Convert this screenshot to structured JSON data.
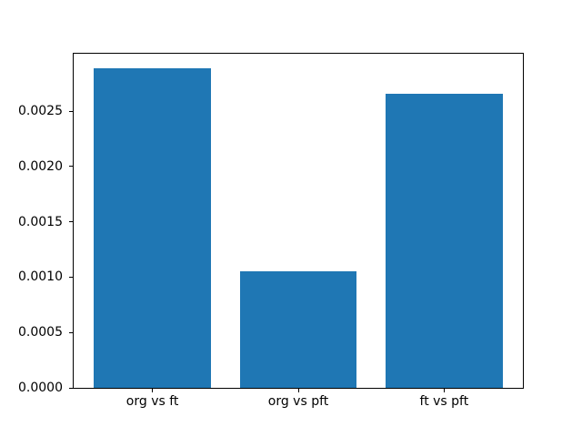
{
  "chart_data": {
    "type": "bar",
    "categories": [
      "org vs ft",
      "org vs pft",
      "ft vs pft"
    ],
    "values": [
      0.00289,
      0.00105,
      0.00266
    ],
    "title": "",
    "xlabel": "",
    "ylabel": "",
    "ylim": [
      0,
      0.00302
    ],
    "yticks": [
      0,
      0.0005,
      0.001,
      0.0015,
      0.002,
      0.0025
    ],
    "ytick_labels": [
      "0.0000",
      "0.0005",
      "0.0010",
      "0.0015",
      "0.0020",
      "0.0025"
    ],
    "bar_color": "#1f77b4",
    "bar_width_fraction": 0.8,
    "grid": false,
    "legend": "none",
    "background": "#ffffff"
  }
}
